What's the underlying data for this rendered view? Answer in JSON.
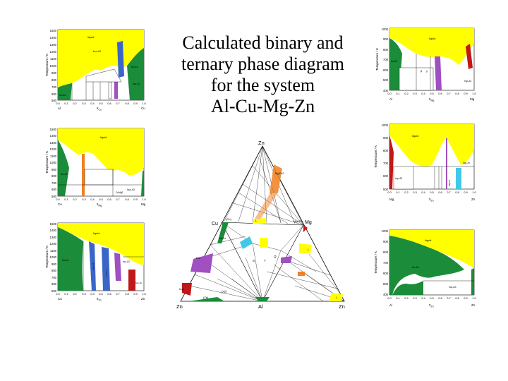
{
  "title": {
    "line1": "Calculated binary and",
    "line2": "ternary phase diagram",
    "line3": "for the system",
    "line4": "Al-Cu-Mg-Zn"
  },
  "colors": {
    "liquid": "#ffff00",
    "fcc": "#1a8c3a",
    "hcp": "#1a8c3a",
    "blue_phase": "#3a66c8",
    "purple_phase": "#a050c0",
    "red_phase": "#c01818",
    "orange_phase": "#f08020",
    "cyan_phase": "#40c8e8",
    "grid": "#000000"
  },
  "binary_left": [
    {
      "ylabel": "Temperature / K",
      "yticks": [
        "1500",
        "1400",
        "1300",
        "1200",
        "1100",
        "1000",
        "900",
        "800",
        "700",
        "600",
        "500"
      ],
      "xticks": [
        "0.0",
        "0.1",
        "0.2",
        "0.3",
        "0.4",
        "0.5",
        "0.6",
        "0.7",
        "0.8",
        "0.9",
        "1.0"
      ],
      "xlabel": "x",
      "xlabel_sub": "Cu",
      "left_element": "Al",
      "right_element": "Cu",
      "labels": [
        "liquid",
        "bcc-A2",
        "fcc-A1",
        "fcc-A1",
        "hcp-Zn"
      ]
    },
    {
      "ylabel": "Temperature / K",
      "yticks": [
        "1500",
        "1400",
        "1300",
        "1200",
        "1100",
        "1000",
        "900",
        "800",
        "700",
        "600",
        "500"
      ],
      "xticks": [
        "0.0",
        "0.1",
        "0.2",
        "0.3",
        "0.4",
        "0.5",
        "0.6",
        "0.7",
        "0.8",
        "0.9",
        "1.0"
      ],
      "xlabel": "x",
      "xlabel_sub": "Mg",
      "left_element": "Cu",
      "right_element": "Mg",
      "labels": [
        "liquid",
        "fcc-A1",
        "hcp-A3",
        "CuMg2"
      ]
    },
    {
      "ylabel": "Temperature / K",
      "yticks": [
        "1500",
        "1400",
        "1300",
        "1200",
        "1100",
        "1000",
        "900",
        "800",
        "700",
        "600",
        "500"
      ],
      "xticks": [
        "0.0",
        "0.1",
        "0.2",
        "0.3",
        "0.4",
        "0.5",
        "0.6",
        "0.7",
        "0.8",
        "0.9",
        "1.0"
      ],
      "xlabel": "x",
      "xlabel_sub": "Zn",
      "left_element": "Cu",
      "right_element": "Zn",
      "labels": [
        "liquid",
        "fcc-A1",
        "bcc-A2",
        "CuZn-γ",
        "bcc-A2",
        "hcp-Zn"
      ]
    }
  ],
  "binary_right": [
    {
      "ylabel": "Temperature / K",
      "yticks": [
        "1000",
        "900",
        "800",
        "700",
        "600",
        "500",
        "400"
      ],
      "xticks": [
        "0.0",
        "0.1",
        "0.2",
        "0.3",
        "0.4",
        "0.5",
        "0.6",
        "0.7",
        "0.8",
        "0.9",
        "1.0"
      ],
      "xlabel": "x",
      "xlabel_sub": "Mg",
      "left_element": "Al",
      "right_element": "Mg",
      "labels": [
        "liquid",
        "fcc-A1",
        "β",
        "γ",
        "hcp-A3"
      ]
    },
    {
      "ylabel": "Temperature / K",
      "yticks": [
        "1000",
        "900",
        "800",
        "700",
        "600",
        "500"
      ],
      "xticks": [
        "0.0",
        "0.1",
        "0.2",
        "0.3",
        "0.4",
        "0.5",
        "0.6",
        "0.7",
        "0.8",
        "0.9",
        "1.0"
      ],
      "xlabel": "x",
      "xlabel_sub": "Zn",
      "left_element": "Mg",
      "right_element": "Zn",
      "labels": [
        "liquid",
        "hcp-A3",
        "hcp-Zn",
        "MgZn2"
      ]
    },
    {
      "ylabel": "Temperature / K",
      "yticks": [
        "1000",
        "900",
        "800",
        "700",
        "600",
        "500",
        "400"
      ],
      "xticks": [
        "0.0",
        "0.1",
        "0.2",
        "0.3",
        "0.4",
        "0.5",
        "0.6",
        "0.7",
        "0.8",
        "0.9",
        "1.0"
      ],
      "xlabel": "x",
      "xlabel_sub": "Zn",
      "left_element": "Al",
      "right_element": "Zn",
      "labels": [
        "liquid",
        "fcc-A1",
        "hcp-A3"
      ]
    }
  ],
  "ternary": {
    "top": "Zn",
    "bottom_left": "Zn",
    "bottom_mid": "Al",
    "bottom_right": "Zn",
    "left_mid": "Cu",
    "right_mid": "Mg",
    "labels": [
      "MgZn2",
      "Mg2Cu",
      "L",
      "(Cu)",
      "(Al)",
      "CuZn",
      "T",
      "S",
      "Q",
      "L",
      "L",
      "bcc",
      "hcp",
      "(Zn)"
    ]
  }
}
